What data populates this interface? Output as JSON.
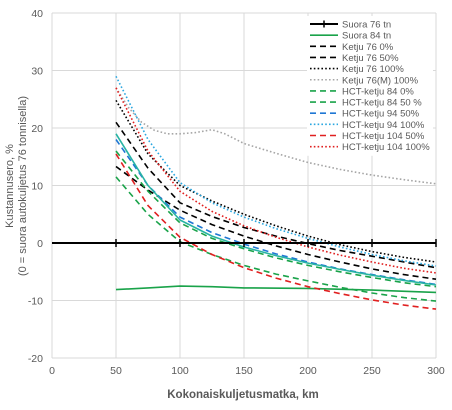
{
  "chart_data": {
    "type": "line",
    "title": "",
    "xlabel": "Kokonaiskuljetusmatka, km",
    "ylabel_lines": [
      "Kustannusero, %",
      "(0 = suora autokuljetus 76 tonnisella)"
    ],
    "xlim": [
      0,
      300
    ],
    "ylim": [
      -20,
      40
    ],
    "x_ticks": [
      0,
      50,
      100,
      150,
      200,
      250,
      300
    ],
    "y_ticks": [
      -20,
      -10,
      0,
      10,
      20,
      30,
      40
    ],
    "x_tick_labels": [
      "0",
      "50",
      "100",
      "150",
      "200",
      "250",
      "300"
    ],
    "y_tick_labels": [
      "-20",
      "-10",
      "0",
      "10",
      "20",
      "30",
      "40"
    ],
    "grid": "horizontal and vertical",
    "legend_position": "top-right",
    "series": [
      {
        "name": "Suora 76 tn",
        "color": "#000000",
        "dash": "solid",
        "markers": true,
        "x": [
          50,
          100,
          150,
          200,
          250,
          300
        ],
        "y": [
          0,
          0,
          0,
          0,
          0,
          0
        ]
      },
      {
        "name": "Suora 84 tn",
        "color": "#1aa34a",
        "dash": "solid",
        "x": [
          50,
          75,
          100,
          125,
          150,
          200,
          250,
          300
        ],
        "y": [
          -8.1,
          -7.8,
          -7.5,
          -7.6,
          -7.8,
          -7.9,
          -8.2,
          -8.6
        ]
      },
      {
        "name": "Ketju 76 0%",
        "color": "#000000",
        "dash": "dashed",
        "x": [
          50,
          75,
          100,
          125,
          150,
          175,
          200,
          225,
          250,
          275,
          300
        ],
        "y": [
          13.3,
          9.2,
          5.7,
          3.2,
          1.2,
          -0.5,
          -2.0,
          -3.3,
          -4.5,
          -5.5,
          -6.3
        ]
      },
      {
        "name": "Ketju 76 50%",
        "color": "#000000",
        "dash": "dashed",
        "x": [
          50,
          75,
          100,
          125,
          150,
          175,
          200,
          225,
          250,
          275,
          300
        ],
        "y": [
          21.0,
          13.0,
          7.0,
          4.6,
          2.7,
          1.2,
          -0.1,
          -1.3,
          -2.3,
          -3.3,
          -4.3
        ]
      },
      {
        "name": "Ketju 76 100%",
        "color": "#000000",
        "dash": "dotted",
        "x": [
          50,
          75,
          100,
          125,
          150,
          175,
          200,
          225,
          250,
          275,
          300
        ],
        "y": [
          24.8,
          15.5,
          10.0,
          7.3,
          5.0,
          3.0,
          1.2,
          -0.3,
          -1.5,
          -2.5,
          -3.3
        ]
      },
      {
        "name": "Ketju 76(M) 100%",
        "color": "#a6a6a6",
        "dash": "dotted",
        "x": [
          50,
          60,
          70,
          80,
          90,
          100,
          112,
          125,
          135,
          150,
          175,
          200,
          225,
          250,
          275,
          300
        ],
        "y": [
          27.0,
          23.5,
          21.0,
          19.6,
          19.0,
          19.0,
          19.2,
          19.7,
          19.0,
          17.3,
          15.6,
          14.0,
          12.8,
          11.8,
          11.0,
          10.3
        ]
      },
      {
        "name": "HCT-ketju 84 0%",
        "color": "#1aa34a",
        "dash": "dashed",
        "x": [
          50,
          75,
          100,
          125,
          150,
          175,
          200,
          225,
          250,
          275,
          300
        ],
        "y": [
          11.5,
          5.0,
          0.2,
          -2.0,
          -3.9,
          -5.4,
          -6.6,
          -7.7,
          -8.7,
          -9.5,
          -10.1
        ]
      },
      {
        "name": "HCT-ketju 84 50 %",
        "color": "#1aa34a",
        "dash": "dashed",
        "x": [
          50,
          75,
          100,
          125,
          150,
          175,
          200,
          225,
          250,
          275,
          300
        ],
        "y": [
          16.0,
          9.0,
          3.5,
          0.8,
          -1.0,
          -2.6,
          -3.9,
          -5.0,
          -6.0,
          -6.9,
          -7.6
        ]
      },
      {
        "name": "HCT-ketju 94 50%",
        "color": "#1f77d4",
        "dash": "dashed",
        "x": [
          50,
          75,
          100,
          125,
          150,
          175,
          200,
          225,
          250,
          275,
          300
        ],
        "y": [
          18.0,
          10.0,
          4.5,
          1.8,
          -0.2,
          -1.9,
          -3.3,
          -4.5,
          -5.5,
          -6.4,
          -7.2
        ]
      },
      {
        "name": "HCT-ketju 94 100%",
        "color": "#2aa7e0",
        "dash": "dotted",
        "x": [
          50,
          75,
          100,
          125,
          150,
          175,
          200,
          225,
          250,
          275,
          300
        ],
        "y": [
          29.0,
          18.0,
          10.5,
          7.0,
          4.5,
          2.5,
          0.8,
          -0.7,
          -2.0,
          -3.1,
          -4.0
        ]
      },
      {
        "name": "HCT-ketju 104 50%",
        "color": "#e02020",
        "dash": "dashed",
        "x": [
          50,
          75,
          100,
          125,
          150,
          175,
          200,
          225,
          250,
          275,
          300
        ],
        "y": [
          15.5,
          6.5,
          1.0,
          -2.0,
          -4.3,
          -6.1,
          -7.6,
          -8.8,
          -9.9,
          -10.8,
          -11.5
        ]
      },
      {
        "name": "HCT-ketju 104 100%",
        "color": "#e02020",
        "dash": "dotted",
        "x": [
          50,
          75,
          100,
          125,
          150,
          175,
          200,
          225,
          250,
          275,
          300
        ],
        "y": [
          27.0,
          16.0,
          9.0,
          5.5,
          3.0,
          1.0,
          -0.7,
          -2.1,
          -3.3,
          -4.4,
          -5.2
        ]
      },
      {
        "name": "",
        "color": "#28b4a4",
        "dash": "solid",
        "x": [
          50,
          75,
          100,
          125,
          150,
          175,
          200,
          225,
          250,
          275,
          300
        ],
        "y": [
          19.0,
          10.0,
          4.0,
          1.2,
          -0.7,
          -2.2,
          -3.5,
          -4.6,
          -5.6,
          -6.5,
          -7.3
        ]
      }
    ]
  }
}
